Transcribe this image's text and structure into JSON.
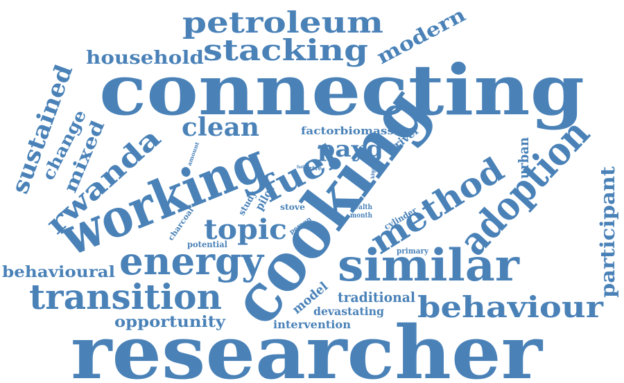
{
  "title": "",
  "style": {
    "word_color": "#4a82b8",
    "background": "#ffffff"
  },
  "words": [
    {
      "text": "researcher"
    },
    {
      "text": "connecting"
    },
    {
      "text": "cooking"
    },
    {
      "text": "working"
    },
    {
      "text": "similar"
    },
    {
      "text": "adoption"
    },
    {
      "text": "method"
    },
    {
      "text": "energy"
    },
    {
      "text": "transition"
    },
    {
      "text": "behaviour"
    },
    {
      "text": "petroleum"
    },
    {
      "text": "stacking"
    },
    {
      "text": "fuel"
    },
    {
      "text": "rwanda"
    },
    {
      "text": "topic"
    },
    {
      "text": "clean"
    },
    {
      "text": "payg"
    },
    {
      "text": "sustained"
    },
    {
      "text": "modern"
    },
    {
      "text": "household"
    },
    {
      "text": "mixed"
    },
    {
      "text": "change"
    },
    {
      "text": "participant"
    },
    {
      "text": "behavioural"
    },
    {
      "text": "opportunity"
    },
    {
      "text": "traditional"
    },
    {
      "text": "urban"
    },
    {
      "text": "factorbiomass"
    },
    {
      "text": "driver"
    },
    {
      "text": "model"
    },
    {
      "text": "devastating"
    },
    {
      "text": "intervention"
    },
    {
      "text": "pilot"
    },
    {
      "text": "study"
    },
    {
      "text": "stove"
    },
    {
      "text": "potential"
    },
    {
      "text": "charcoal"
    },
    {
      "text": "cylinder"
    },
    {
      "text": "primary"
    },
    {
      "text": "health"
    },
    {
      "text": "month"
    },
    {
      "text": "person"
    },
    {
      "text": "amount"
    },
    {
      "text": "drive"
    },
    {
      "text": "kigali"
    },
    {
      "text": "fuel"
    }
  ]
}
